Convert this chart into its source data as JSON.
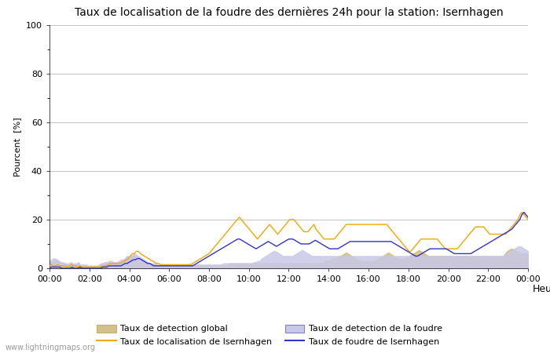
{
  "title": "Taux de localisation de la foudre des dernières 24h pour la station: Isernhagen",
  "xlabel": "Heure",
  "ylabel": "Pourcent  [%]",
  "watermark": "www.lightningmaps.org",
  "xlim": [
    0,
    288
  ],
  "ylim": [
    0,
    100
  ],
  "yticks": [
    0,
    20,
    40,
    60,
    80,
    100
  ],
  "yticks_minor": [
    10,
    30,
    50,
    70,
    90
  ],
  "xtick_labels": [
    "00:00",
    "02:00",
    "04:00",
    "06:00",
    "08:00",
    "10:00",
    "12:00",
    "14:00",
    "16:00",
    "18:00",
    "20:00",
    "22:00",
    "00:00"
  ],
  "xtick_positions": [
    0,
    24,
    48,
    72,
    96,
    120,
    144,
    168,
    192,
    216,
    240,
    264,
    288
  ],
  "color_global_fill": "#d4c08a",
  "color_global_line": "#c8b060",
  "color_local_fill": "#c8c8e8",
  "color_local_line": "#8080cc",
  "color_localisation": "#f0a800",
  "color_foudre_local": "#3333cc",
  "legend_labels": [
    "Taux de detection global",
    "Taux de localisation de Isernhagen",
    "Taux de detection de la foudre",
    "Taux de foudre de Isernhagen"
  ],
  "n_points": 289,
  "global_detection": [
    2,
    2.5,
    3,
    3.5,
    3,
    2.5,
    2,
    2,
    2,
    1.5,
    1.5,
    2,
    2,
    1.5,
    1.5,
    2,
    1,
    1,
    1,
    1,
    1,
    1,
    1,
    1,
    1,
    1,
    1.5,
    2,
    2,
    2.5,
    2,
    2,
    2,
    2,
    2,
    2,
    2.5,
    3,
    3,
    3.5,
    4,
    4.5,
    4,
    5,
    5.5,
    5,
    4.5,
    4,
    3.5,
    3,
    2.5,
    2,
    2,
    2,
    1.5,
    1.5,
    1,
    1,
    1,
    1,
    1,
    1,
    1,
    1,
    1,
    1,
    1,
    1,
    1,
    1,
    1,
    1,
    1,
    1,
    1,
    1,
    1,
    1,
    1,
    1,
    1,
    1,
    1,
    1,
    1,
    1,
    1,
    1,
    1,
    1,
    1,
    1,
    1,
    1,
    2,
    2,
    2,
    2,
    2,
    2,
    2,
    2,
    2,
    2,
    2,
    2,
    2,
    2,
    2,
    2,
    2,
    2,
    2,
    2,
    2,
    2,
    2,
    2,
    2,
    2,
    2,
    2,
    2,
    2,
    2,
    2,
    2,
    2,
    2,
    2,
    2,
    2,
    2,
    2,
    2,
    2,
    2,
    2,
    2,
    2,
    2,
    2,
    2,
    2,
    3,
    3,
    3,
    3.5,
    4,
    4,
    4.5,
    5,
    5,
    5.5,
    6,
    6.5,
    6,
    5.5,
    5,
    4.5,
    4,
    3.5,
    3,
    3,
    3,
    3,
    3,
    3,
    3,
    3,
    3,
    3.5,
    4,
    4.5,
    5,
    5.5,
    6,
    6.5,
    6,
    5.5,
    5,
    4.5,
    4,
    4,
    4,
    4,
    4,
    4.5,
    5,
    5.5,
    6,
    6.5,
    7,
    7.5,
    7,
    6.5,
    6,
    5.5,
    5,
    5,
    5,
    5,
    5,
    5,
    5,
    5,
    5,
    5,
    5,
    5,
    5,
    5,
    5,
    5,
    5,
    5,
    5,
    5,
    5,
    5,
    5,
    5,
    5,
    5,
    5,
    5,
    5,
    5,
    5,
    5,
    5,
    5,
    5,
    5,
    5,
    5,
    5,
    5,
    6,
    7,
    7.5,
    8,
    8,
    7.5,
    7,
    6.5,
    6,
    6,
    6,
    6,
    6
  ],
  "local_detection": [
    3,
    3.5,
    4,
    4,
    3.5,
    3,
    2.5,
    2.5,
    2,
    2,
    2,
    2.5,
    2,
    2,
    2,
    2.5,
    1.5,
    1.5,
    1.5,
    1.5,
    1,
    1,
    1,
    1,
    1,
    1,
    1.5,
    2,
    2,
    2.5,
    2.5,
    3,
    3,
    2.5,
    2.5,
    2.5,
    3,
    3.5,
    3.5,
    4,
    5,
    5,
    5,
    5.5,
    6,
    5.5,
    5,
    4.5,
    4,
    3.5,
    3,
    2.5,
    2,
    2,
    2,
    2,
    1.5,
    1.5,
    1.5,
    1.5,
    1.5,
    1.5,
    1.5,
    1.5,
    1.5,
    1.5,
    1.5,
    1.5,
    1.5,
    1.5,
    1.5,
    1.5,
    1.5,
    1.5,
    1.5,
    1.5,
    1.5,
    1.5,
    1.5,
    1.5,
    1.5,
    1.5,
    1.5,
    1.5,
    1.5,
    1.5,
    1.5,
    1.5,
    1.5,
    1.5,
    2,
    2,
    2,
    2,
    2,
    2,
    2,
    2,
    2,
    2,
    2,
    2,
    2,
    2,
    2,
    2,
    2.5,
    2.5,
    3,
    3,
    4,
    4.5,
    5,
    5.5,
    6,
    6.5,
    7,
    7,
    6.5,
    6,
    5.5,
    5,
    5,
    5,
    5,
    5,
    5,
    5.5,
    6,
    6.5,
    7,
    7.5,
    7,
    6.5,
    6,
    5.5,
    5,
    5,
    5,
    5,
    5,
    5,
    5,
    5,
    5,
    5,
    5,
    5,
    5,
    5,
    5,
    5,
    5,
    5,
    5,
    5,
    5,
    5,
    5,
    5,
    5,
    5,
    5,
    5,
    5,
    5,
    5,
    5,
    5,
    5,
    5,
    5,
    5,
    5,
    5,
    5,
    5,
    5,
    5,
    5,
    5,
    5,
    5,
    5,
    5,
    5,
    5,
    5,
    5,
    5,
    5,
    5,
    5,
    5,
    5,
    5,
    5,
    5,
    5,
    5,
    5,
    5,
    5,
    5,
    5,
    5,
    5,
    5,
    5,
    5,
    5,
    5,
    5,
    5,
    5,
    5,
    5,
    5,
    5,
    5,
    5,
    5,
    5,
    5,
    5,
    5,
    5,
    5,
    5,
    5,
    5,
    5,
    5,
    5,
    5,
    5,
    5.5,
    6,
    6.5,
    7,
    7.5,
    8,
    8.5,
    9,
    9,
    8.5,
    8,
    7.5,
    7
  ],
  "localisation_isernhagen": [
    1,
    1.5,
    1,
    1,
    1.5,
    1,
    1,
    1,
    1,
    0.5,
    1,
    1.5,
    1,
    1,
    0.5,
    1,
    0.5,
    0.5,
    0.5,
    0.5,
    0.5,
    0.5,
    0.5,
    0.5,
    0.5,
    0.5,
    1,
    1,
    1,
    1.5,
    2,
    2,
    2,
    2,
    2,
    2,
    2.5,
    3,
    3.5,
    4,
    5,
    6,
    6,
    7,
    7,
    6,
    5.5,
    5,
    4.5,
    4,
    3.5,
    3,
    2.5,
    2,
    2,
    1.5,
    1.5,
    1.5,
    1.5,
    1.5,
    1.5,
    1.5,
    1.5,
    1.5,
    1.5,
    1.5,
    1.5,
    1.5,
    1.5,
    1.5,
    1.5,
    2,
    2.5,
    3,
    3.5,
    4,
    4.5,
    5,
    5.5,
    6,
    7,
    8,
    9,
    10,
    11,
    12,
    13,
    14,
    15,
    16,
    17,
    18,
    19,
    20,
    21,
    20,
    19,
    18,
    17,
    16,
    15,
    14,
    13,
    12,
    13,
    14,
    15,
    16,
    17,
    18,
    17,
    16,
    15,
    14,
    15,
    16,
    17,
    18,
    19,
    20,
    20,
    20,
    19,
    18,
    17,
    16,
    15,
    15,
    15,
    16,
    17,
    18,
    16,
    15,
    14,
    13,
    12,
    12,
    12,
    12,
    12,
    12,
    13,
    14,
    15,
    16,
    17,
    18,
    18,
    18,
    18,
    18,
    18,
    18,
    18,
    18,
    18,
    18,
    18,
    18,
    18,
    18,
    18,
    18,
    18,
    18,
    18,
    18,
    17,
    16,
    15,
    14,
    13,
    12,
    11,
    10,
    9,
    8,
    7,
    7,
    8,
    9,
    10,
    11,
    12,
    12,
    12,
    12,
    12,
    12,
    12,
    12,
    12,
    11,
    10,
    9,
    8,
    8,
    8,
    8,
    8,
    8,
    8,
    9,
    10,
    11,
    12,
    13,
    14,
    15,
    16,
    17,
    17,
    17,
    17,
    17,
    16,
    15,
    14,
    14,
    14,
    14,
    14,
    14,
    14,
    14,
    14,
    15,
    16,
    17,
    18,
    19,
    20,
    22,
    23,
    22,
    21,
    20
  ],
  "foudre_isernhagen": [
    0,
    0.5,
    0.5,
    0.5,
    0.5,
    0.5,
    0,
    0,
    0,
    0,
    0,
    0.5,
    0,
    0,
    0,
    0.5,
    0,
    0,
    0,
    0,
    0,
    0,
    0,
    0,
    0,
    0,
    0.5,
    0.5,
    0.5,
    1,
    1,
    1,
    1,
    1,
    1,
    1,
    1.5,
    2,
    2,
    2.5,
    3,
    3.5,
    3.5,
    4,
    4,
    3.5,
    3,
    2.5,
    2,
    2,
    1.5,
    1,
    1,
    1,
    1,
    1,
    1,
    1,
    1,
    1,
    1,
    1,
    1,
    1,
    1,
    1,
    1,
    1,
    1,
    1,
    1,
    1.5,
    2,
    2.5,
    3,
    3.5,
    4,
    4.5,
    5,
    5.5,
    6,
    6.5,
    7,
    7.5,
    8,
    8.5,
    9,
    9.5,
    10,
    10.5,
    11,
    11.5,
    12,
    12,
    11.5,
    11,
    10.5,
    10,
    9.5,
    9,
    8.5,
    8,
    8.5,
    9,
    9.5,
    10,
    10.5,
    11,
    10.5,
    10,
    9.5,
    9,
    9.5,
    10,
    10.5,
    11,
    11.5,
    12,
    12,
    12,
    11.5,
    11,
    10.5,
    10,
    10,
    10,
    10,
    10,
    10.5,
    11,
    11.5,
    11,
    10.5,
    10,
    9.5,
    9,
    8.5,
    8,
    8,
    8,
    8,
    8,
    8.5,
    9,
    9.5,
    10,
    10.5,
    11,
    11,
    11,
    11,
    11,
    11,
    11,
    11,
    11,
    11,
    11,
    11,
    11,
    11,
    11,
    11,
    11,
    11,
    11,
    11,
    11,
    10.5,
    10,
    9.5,
    9,
    8.5,
    8,
    7.5,
    7,
    6.5,
    6,
    5.5,
    5,
    5,
    5.5,
    6,
    6.5,
    7,
    7.5,
    8,
    8,
    8,
    8,
    8,
    8,
    8,
    8,
    8,
    7.5,
    7,
    6.5,
    6,
    6,
    6,
    6,
    6,
    6,
    6,
    6,
    6,
    6.5,
    7,
    7.5,
    8,
    8.5,
    9,
    9.5,
    10,
    10.5,
    11,
    11.5,
    12,
    12.5,
    13,
    13.5,
    14,
    14.5,
    15,
    15.5,
    16,
    17,
    18,
    19,
    20,
    22,
    23,
    22,
    21
  ]
}
